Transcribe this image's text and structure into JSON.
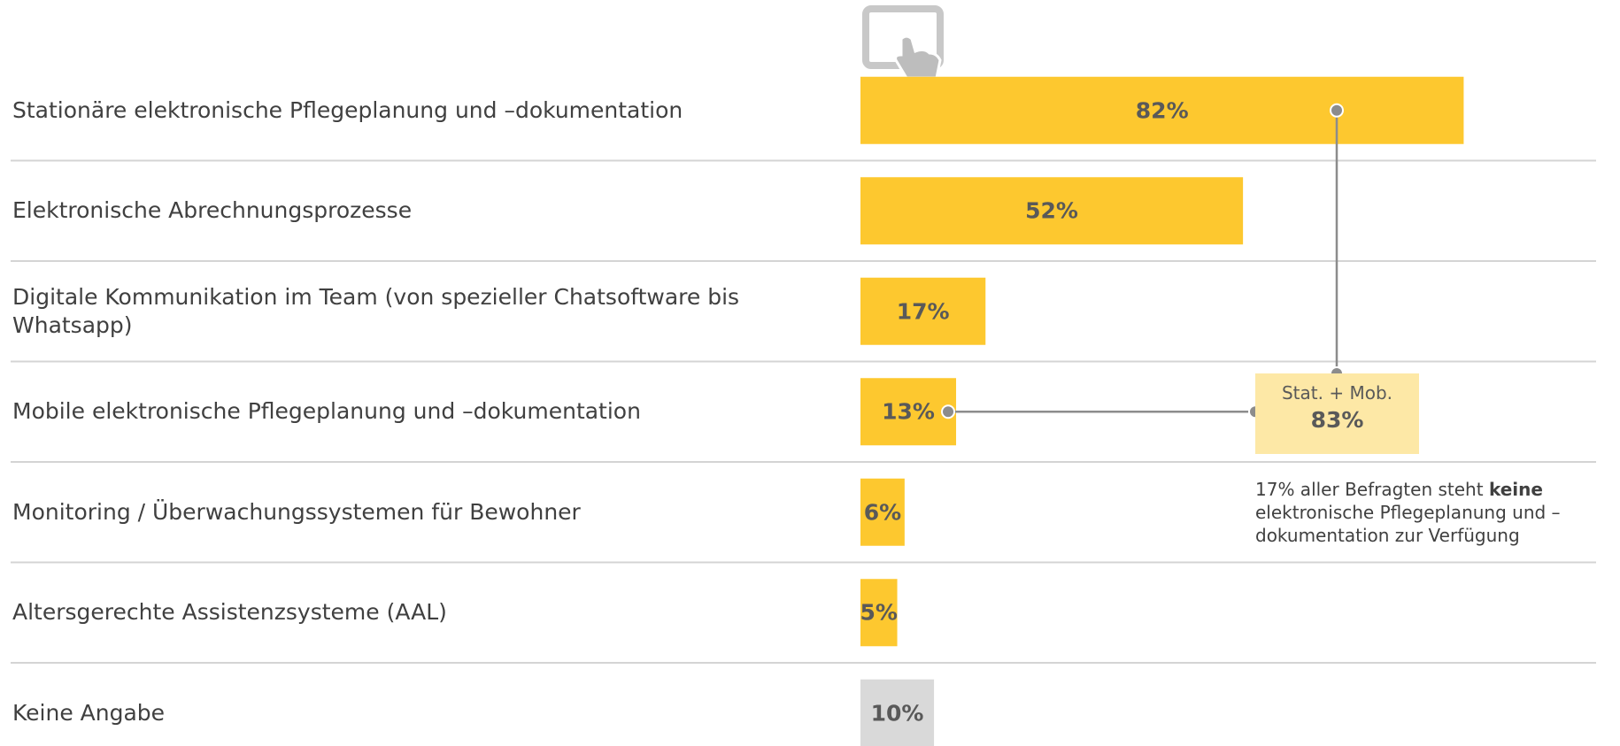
{
  "chart_data": {
    "type": "bar",
    "orientation": "horizontal",
    "categories": [
      "Stationäre elektronische Pflegeplanung und –dokumentation",
      "Elektronische Abrechnungsprozesse",
      "Digitale Kommunikation im Team (von spezieller Chatsoftware bis Whatsapp)",
      "Mobile elektronische Pflegeplanung und –dokumentation",
      "Monitoring / Überwachungssystemen für Bewohner",
      "Altersgerechte Assistenzsysteme (AAL)",
      "Keine Angabe"
    ],
    "values": [
      82,
      52,
      17,
      13,
      6,
      5,
      10
    ],
    "value_labels": [
      "82%",
      "52%",
      "17%",
      "13%",
      "6%",
      "5%",
      "10%"
    ],
    "colors": [
      "#fdc82f",
      "#fdc82f",
      "#fdc82f",
      "#fdc82f",
      "#fdc82f",
      "#fdc82f",
      "#d9d9d9"
    ],
    "xlim": [
      0,
      100
    ],
    "callout": {
      "title": "Stat. + Mob.",
      "value_label": "83%"
    },
    "note": {
      "before": "17% aller Befragten steht ",
      "bold": "keine",
      "after": " elektronische Pflegeplanung und –dokumentation zur Verfügung"
    }
  }
}
